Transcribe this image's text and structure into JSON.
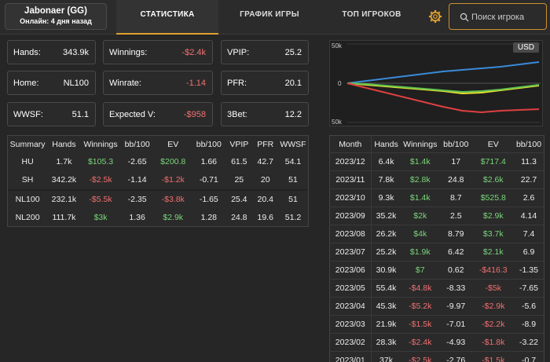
{
  "header": {
    "player_name": "Jabonaer (GG)",
    "player_status": "Онлайн: 4 дня назад",
    "tabs": [
      "СТАТИСТИКА",
      "ГРАФИК ИГРЫ",
      "ТОП ИГРОКОВ"
    ],
    "active_tab": "СТАТИСТИКА",
    "search_placeholder": "Поиск игрока",
    "accent_color": "#e0a030"
  },
  "stats": {
    "hands_label": "Hands:",
    "hands": "343.9k",
    "winnings_label": "Winnings:",
    "winnings": "-$2.4k",
    "vpip_label": "VPIP:",
    "vpip": "25.2",
    "home_label": "Home:",
    "home": "NL100",
    "winrate_label": "Winrate:",
    "winrate": "-1.14",
    "pfr_label": "PFR:",
    "pfr": "20.1",
    "wwsf_label": "WWSF:",
    "wwsf": "51.1",
    "ev_label": "Expected V:",
    "ev": "-$958",
    "threebet_label": "3Bet:",
    "threebet": "12.2"
  },
  "chart": {
    "currency": "USD",
    "y_top": "50k",
    "y_mid": "0",
    "y_bottom": "50k"
  },
  "chart_data": {
    "type": "line",
    "x": [
      0,
      0.1,
      0.2,
      0.3,
      0.4,
      0.5,
      0.6,
      0.7,
      0.8,
      0.9,
      1.0
    ],
    "ylim": [
      -50,
      50
    ],
    "series": [
      {
        "color": "#3a8ad8",
        "values": [
          0,
          3,
          6,
          9,
          12,
          15,
          17,
          19,
          21,
          24,
          27
        ]
      },
      {
        "color": "#e8e030",
        "values": [
          0,
          -2,
          -4,
          -6,
          -8,
          -10,
          -13,
          -12,
          -9,
          -6,
          -3
        ]
      },
      {
        "color": "#60c050",
        "values": [
          0,
          -1,
          -3,
          -5,
          -7,
          -9,
          -11,
          -10,
          -8,
          -5,
          -2
        ]
      },
      {
        "color": "#e04040",
        "values": [
          0,
          -6,
          -12,
          -18,
          -24,
          -30,
          -35,
          -37,
          -35,
          -34,
          -33
        ]
      }
    ]
  },
  "summary": {
    "columns": [
      "Summary",
      "Hands",
      "Winnings",
      "bb/100",
      "EV",
      "bb/100",
      "VPIP",
      "PFR",
      "WWSF"
    ],
    "group1": [
      {
        "name": "HU",
        "hands": "1.7k",
        "winnings": "$105.3",
        "w_sign": "pos",
        "bb": "-2.65",
        "ev": "$200.8",
        "ev_sign": "pos",
        "evbb": "1.66",
        "vpip": "61.5",
        "pfr": "42.7",
        "wwsf": "54.1"
      },
      {
        "name": "SH",
        "hands": "342.2k",
        "winnings": "-$2.5k",
        "w_sign": "neg",
        "bb": "-1.14",
        "ev": "-$1.2k",
        "ev_sign": "neg",
        "evbb": "-0.71",
        "vpip": "25",
        "pfr": "20",
        "wwsf": "51"
      }
    ],
    "group2": [
      {
        "name": "NL100",
        "hands": "232.1k",
        "winnings": "-$5.5k",
        "w_sign": "neg",
        "bb": "-2.35",
        "ev": "-$3.8k",
        "ev_sign": "neg",
        "evbb": "-1.65",
        "vpip": "25.4",
        "pfr": "20.4",
        "wwsf": "51"
      },
      {
        "name": "NL200",
        "hands": "111.7k",
        "winnings": "$3k",
        "w_sign": "pos",
        "bb": "1.36",
        "ev": "$2.9k",
        "ev_sign": "pos",
        "evbb": "1.28",
        "vpip": "24.8",
        "pfr": "19.6",
        "wwsf": "51.2"
      }
    ]
  },
  "monthly": {
    "columns": [
      "Month",
      "Hands",
      "Winnings",
      "bb/100",
      "EV",
      "bb/100"
    ],
    "rows": [
      {
        "month": "2023/12",
        "hands": "6.4k",
        "winnings": "$1.4k",
        "w_sign": "pos",
        "bb": "17",
        "ev": "$717.4",
        "ev_sign": "pos",
        "evbb": "11.3"
      },
      {
        "month": "2023/11",
        "hands": "7.8k",
        "winnings": "$2.8k",
        "w_sign": "pos",
        "bb": "24.8",
        "ev": "$2.6k",
        "ev_sign": "pos",
        "evbb": "22.7"
      },
      {
        "month": "2023/10",
        "hands": "9.3k",
        "winnings": "$1.4k",
        "w_sign": "pos",
        "bb": "8.7",
        "ev": "$525.8",
        "ev_sign": "pos",
        "evbb": "2.6"
      },
      {
        "month": "2023/09",
        "hands": "35.2k",
        "winnings": "$2k",
        "w_sign": "pos",
        "bb": "2.5",
        "ev": "$2.9k",
        "ev_sign": "pos",
        "evbb": "4.14"
      },
      {
        "month": "2023/08",
        "hands": "26.2k",
        "winnings": "$4k",
        "w_sign": "pos",
        "bb": "8.79",
        "ev": "$3.7k",
        "ev_sign": "pos",
        "evbb": "7.4"
      },
      {
        "month": "2023/07",
        "hands": "25.2k",
        "winnings": "$1.9k",
        "w_sign": "pos",
        "bb": "6.42",
        "ev": "$2.1k",
        "ev_sign": "pos",
        "evbb": "6.9"
      },
      {
        "month": "2023/06",
        "hands": "30.9k",
        "winnings": "$7",
        "w_sign": "pos",
        "bb": "0.62",
        "ev": "-$416.3",
        "ev_sign": "neg",
        "evbb": "-1.35"
      },
      {
        "month": "2023/05",
        "hands": "55.4k",
        "winnings": "-$4.8k",
        "w_sign": "neg",
        "bb": "-8.33",
        "ev": "-$5k",
        "ev_sign": "neg",
        "evbb": "-7.65"
      },
      {
        "month": "2023/04",
        "hands": "45.3k",
        "winnings": "-$5.2k",
        "w_sign": "neg",
        "bb": "-9.97",
        "ev": "-$2.9k",
        "ev_sign": "neg",
        "evbb": "-5.6"
      },
      {
        "month": "2023/03",
        "hands": "21.9k",
        "winnings": "-$1.5k",
        "w_sign": "neg",
        "bb": "-7.01",
        "ev": "-$2.2k",
        "ev_sign": "neg",
        "evbb": "-8.9"
      },
      {
        "month": "2023/02",
        "hands": "28.3k",
        "winnings": "-$2.4k",
        "w_sign": "neg",
        "bb": "-4.93",
        "ev": "-$1.8k",
        "ev_sign": "neg",
        "evbb": "-3.22"
      },
      {
        "month": "2023/01",
        "hands": "37k",
        "winnings": "-$2.5k",
        "w_sign": "neg",
        "bb": "-2.76",
        "ev": "-$1.5k",
        "ev_sign": "neg",
        "evbb": "-0.7"
      }
    ]
  }
}
